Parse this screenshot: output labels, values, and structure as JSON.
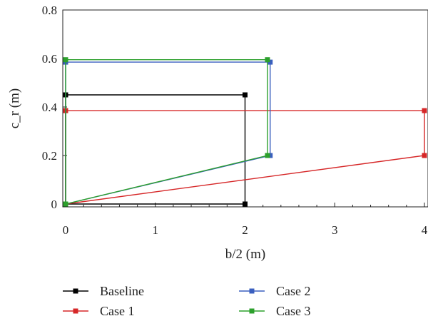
{
  "chart_data": {
    "type": "line",
    "title": "",
    "xlabel": "b/2 (m)",
    "ylabel": "c_r (m)",
    "xlim": [
      0,
      4
    ],
    "ylim": [
      0,
      0.8
    ],
    "xticks": [
      0,
      1,
      2,
      3,
      4
    ],
    "yticks": [
      0,
      0.2,
      0.4,
      0.6,
      0.8
    ],
    "xtick_labels": [
      "0",
      "1",
      "2",
      "3",
      "4"
    ],
    "ytick_labels": [
      "0",
      "0.2",
      "0.4",
      "0.6",
      "0.8"
    ],
    "grid": false,
    "legend_position": "bottom",
    "series": [
      {
        "name": "Baseline",
        "color": "#000000",
        "points": [
          [
            0,
            0
          ],
          [
            2.0,
            0
          ],
          [
            2.0,
            0.45
          ],
          [
            0,
            0.45
          ],
          [
            0,
            0
          ]
        ]
      },
      {
        "name": "Case 1",
        "color": "#d62728",
        "points": [
          [
            0,
            0
          ],
          [
            4.0,
            0.2
          ],
          [
            4.0,
            0.385
          ],
          [
            0,
            0.385
          ],
          [
            0,
            0
          ]
        ]
      },
      {
        "name": "Case 2",
        "color": "#3a5fbf",
        "points": [
          [
            0,
            0
          ],
          [
            2.28,
            0.2
          ],
          [
            2.28,
            0.585
          ],
          [
            0,
            0.585
          ],
          [
            0,
            0
          ]
        ]
      },
      {
        "name": "Case 3",
        "color": "#2ca02c",
        "points": [
          [
            0,
            0
          ],
          [
            2.25,
            0.2
          ],
          [
            2.25,
            0.595
          ],
          [
            0,
            0.595
          ],
          [
            0,
            0
          ]
        ]
      }
    ]
  }
}
